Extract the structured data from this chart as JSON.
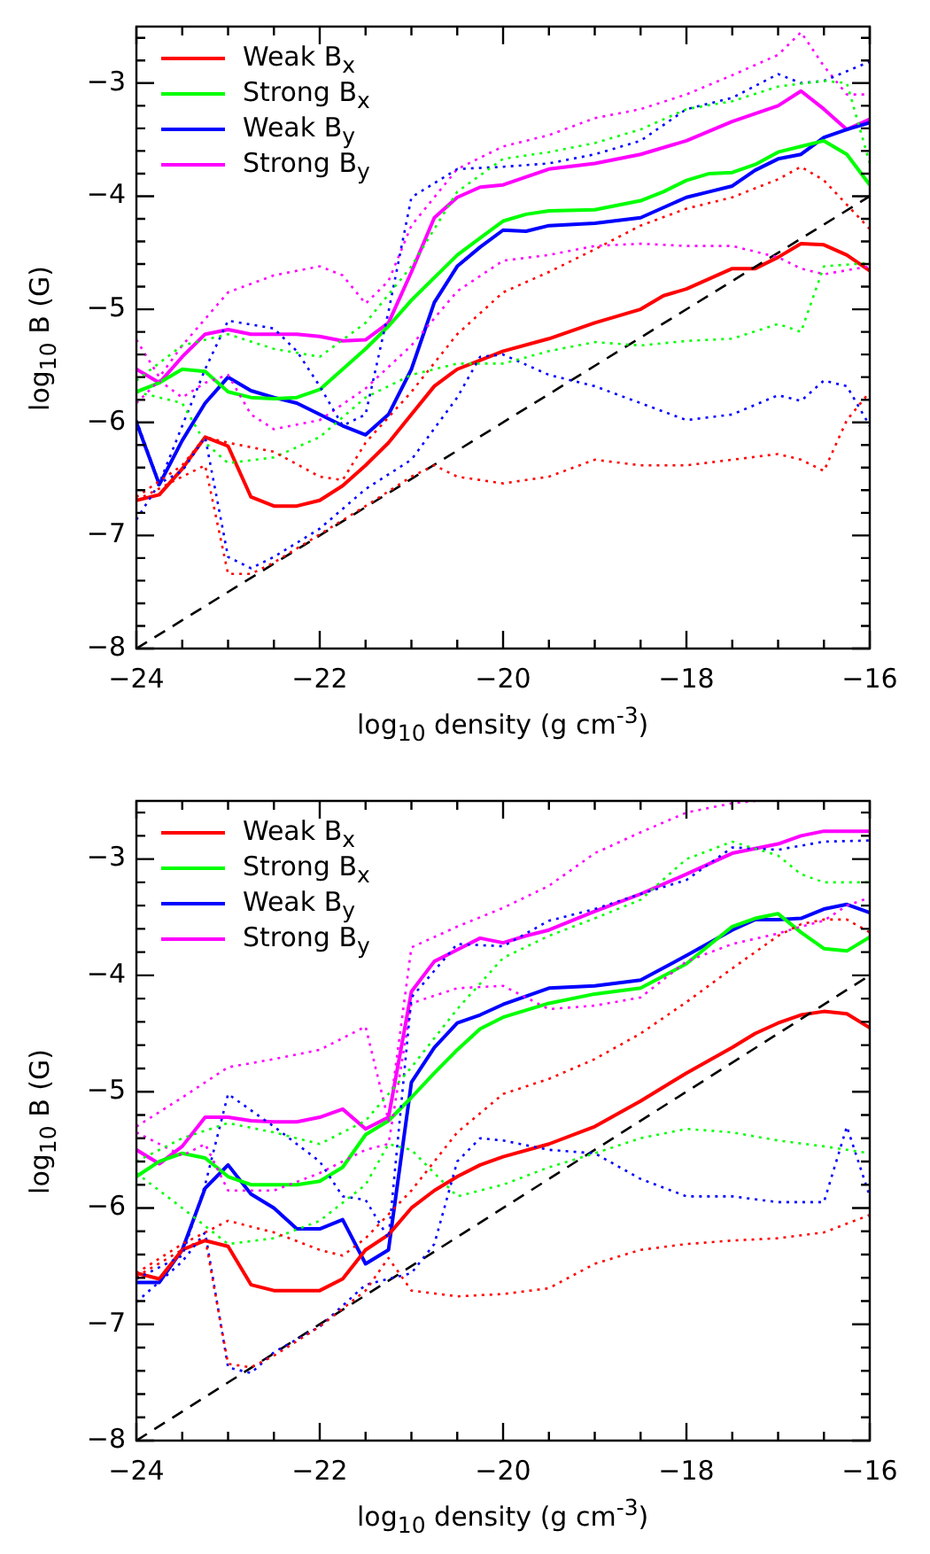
{
  "chart_data": [
    {
      "type": "line",
      "xlabel": "log$_{10}$ density (g cm$^{-3}$)",
      "ylabel": "log$_{10}$ B (G)",
      "xlim": [
        -24,
        -16
      ],
      "ylim": [
        -8,
        -2.5
      ],
      "xticks": [
        -24,
        {
          "value": -23.5,
          "label": null
        },
        {
          "value": -23,
          "label": null
        },
        {
          "value": -22.5,
          "label": null
        },
        -22,
        {
          "value": -21.5,
          "label": null
        },
        {
          "value": -21,
          "label": null
        },
        {
          "value": -20.5,
          "label": null
        },
        -20,
        {
          "value": -19.5,
          "label": null
        },
        {
          "value": -19,
          "label": null
        },
        {
          "value": -18.5,
          "label": null
        },
        -18,
        {
          "value": -17.5,
          "label": null
        },
        {
          "value": -17,
          "label": null
        },
        {
          "value": -16.5,
          "label": null
        },
        -16
      ],
      "yticks": [
        -8,
        {
          "value": -7.8,
          "label": null
        },
        {
          "value": -7.6,
          "label": null
        },
        {
          "value": -7.4,
          "label": null
        },
        {
          "value": -7.2,
          "label": null
        },
        -7,
        {
          "value": -6.8,
          "label": null
        },
        {
          "value": -6.6,
          "label": null
        },
        {
          "value": -6.4,
          "label": null
        },
        {
          "value": -6.2,
          "label": null
        },
        -6,
        {
          "value": -5.8,
          "label": null
        },
        {
          "value": -5.6,
          "label": null
        },
        {
          "value": -5.4,
          "label": null
        },
        {
          "value": -5.2,
          "label": null
        },
        -5,
        {
          "value": -4.8,
          "label": null
        },
        {
          "value": -4.6,
          "label": null
        },
        {
          "value": -4.4,
          "label": null
        },
        {
          "value": -4.2,
          "label": null
        },
        -4,
        {
          "value": -3.8,
          "label": null
        },
        {
          "value": -3.6,
          "label": null
        },
        {
          "value": -3.4,
          "label": null
        },
        {
          "value": -3.2,
          "label": null
        },
        -3,
        {
          "value": -2.8,
          "label": null
        },
        {
          "value": -2.6,
          "label": null
        }
      ],
      "legend": "top left",
      "marker": "none",
      "series": [
        {
          "color": "#ff0000",
          "line_style": "dotted",
          "x": [
            -24,
            -23.5,
            -23.25,
            -23,
            -22.5,
            -22,
            -21.75,
            -21.5,
            -21,
            -20.5,
            -20,
            -19.5,
            -19,
            -18.5,
            -18,
            -17.5,
            -17,
            -16.75,
            -16.5,
            -16
          ],
          "values": [
            -6.66,
            -6.38,
            -6.13,
            -6.18,
            -6.26,
            -6.48,
            -6.51,
            -6.18,
            -5.73,
            -5.22,
            -4.85,
            -4.67,
            -4.47,
            -4.26,
            -4.11,
            -4.01,
            -3.85,
            -3.74,
            -3.86,
            -4.29
          ]
        },
        {
          "color": "#ff0000",
          "line_style": "dotted",
          "x": [
            -24,
            -23.5,
            -23.25,
            -23,
            -22.75,
            -22.5,
            -22,
            -21.5,
            -21,
            -20.75,
            -20.5,
            -20,
            -19.5,
            -19,
            -18.5,
            -18,
            -17.5,
            -17,
            -16.75,
            -16.5,
            -16.25,
            -16
          ],
          "values": [
            -6.69,
            -6.48,
            -6.38,
            -7.34,
            -7.34,
            -7.24,
            -6.99,
            -6.74,
            -6.48,
            -6.38,
            -6.48,
            -6.54,
            -6.48,
            -6.33,
            -6.38,
            -6.38,
            -6.33,
            -6.28,
            -6.33,
            -6.43,
            -5.98,
            -5.73
          ]
        },
        {
          "color": "#00ff00",
          "line_style": "dotted",
          "x": [
            -24,
            -23.5,
            -23,
            -22.5,
            -22,
            -21.5,
            -21,
            -20.5,
            -20,
            -19.5,
            -19,
            -18.5,
            -18,
            -17.5,
            -17,
            -16.5,
            -16.25,
            -16
          ],
          "values": [
            -5.63,
            -5.32,
            -5.22,
            -5.35,
            -5.42,
            -5.12,
            -4.62,
            -3.96,
            -3.67,
            -3.61,
            -3.53,
            -3.41,
            -3.23,
            -3.16,
            -3.03,
            -2.98,
            -3.0,
            -3.71
          ]
        },
        {
          "color": "#00ff00",
          "line_style": "dotted",
          "x": [
            -24,
            -23.5,
            -23.25,
            -23,
            -22.5,
            -22,
            -21.5,
            -21,
            -20.5,
            -20,
            -19.5,
            -19,
            -18.5,
            -18,
            -17.5,
            -17,
            -16.75,
            -16.5,
            -16
          ],
          "values": [
            -5.73,
            -5.83,
            -6.18,
            -6.36,
            -6.31,
            -6.13,
            -5.78,
            -5.58,
            -5.48,
            -5.48,
            -5.37,
            -5.29,
            -5.32,
            -5.28,
            -5.26,
            -5.13,
            -5.2,
            -4.62,
            -4.59
          ]
        },
        {
          "color": "#0000ff",
          "line_style": "dotted",
          "x": [
            -24,
            -23.75,
            -23.5,
            -23.25,
            -23,
            -22.5,
            -22.25,
            -22,
            -21.75,
            -21.5,
            -21.25,
            -21,
            -20.5,
            -20,
            -19.5,
            -19,
            -18.5,
            -18,
            -17.5,
            -17,
            -16.75,
            -16.5,
            -16
          ],
          "values": [
            -5.98,
            -6.54,
            -6.03,
            -5.53,
            -5.1,
            -5.17,
            -5.37,
            -5.68,
            -6.03,
            -5.93,
            -5.02,
            -4.01,
            -3.76,
            -3.74,
            -3.71,
            -3.63,
            -3.51,
            -3.23,
            -3.13,
            -2.92,
            -3.0,
            -2.98,
            -2.81
          ]
        },
        {
          "color": "#0000ff",
          "line_style": "dotted",
          "x": [
            -24,
            -23.75,
            -23.5,
            -23.25,
            -23,
            -22.75,
            -22.5,
            -22,
            -21.5,
            -21,
            -20.5,
            -20.25,
            -20,
            -19.5,
            -19,
            -18.5,
            -18,
            -17.5,
            -17,
            -16.75,
            -16.5,
            -16.25,
            -16
          ],
          "values": [
            -6.86,
            -6.54,
            -6.43,
            -6.13,
            -7.19,
            -7.29,
            -7.19,
            -6.94,
            -6.59,
            -6.33,
            -5.78,
            -5.42,
            -5.4,
            -5.58,
            -5.68,
            -5.83,
            -5.98,
            -5.93,
            -5.76,
            -5.81,
            -5.63,
            -5.68,
            -6.03
          ]
        },
        {
          "color": "#ff00ff",
          "line_style": "dotted",
          "x": [
            -24,
            -23.75,
            -23.5,
            -23,
            -22.5,
            -22,
            -21.75,
            -21.5,
            -21.25,
            -21,
            -20.5,
            -20,
            -19.5,
            -19,
            -18.5,
            -18,
            -17.5,
            -17,
            -16.75,
            -16.5,
            -16.25,
            -16
          ],
          "values": [
            -5.27,
            -5.6,
            -5.32,
            -4.85,
            -4.7,
            -4.62,
            -4.7,
            -4.95,
            -4.75,
            -4.26,
            -3.76,
            -3.56,
            -3.46,
            -3.31,
            -3.23,
            -3.1,
            -2.93,
            -2.75,
            -2.55,
            -2.85,
            -3.1,
            -3.1
          ]
        },
        {
          "color": "#ff00ff",
          "line_style": "dotted",
          "x": [
            -24,
            -23.75,
            -23.5,
            -23.25,
            -23,
            -22.75,
            -22.5,
            -22,
            -21.5,
            -21,
            -20.5,
            -20,
            -19.5,
            -19,
            -18.5,
            -18,
            -17.5,
            -17,
            -16.75,
            -16.5,
            -16
          ],
          "values": [
            -5.83,
            -5.63,
            -5.78,
            -5.65,
            -5.58,
            -5.93,
            -6.06,
            -5.98,
            -5.7,
            -5.32,
            -4.84,
            -4.57,
            -4.52,
            -4.44,
            -4.42,
            -4.44,
            -4.44,
            -4.54,
            -4.64,
            -4.69,
            -4.62
          ]
        },
        {
          "color": "#000000",
          "line_style": "dashed",
          "x": [
            -24,
            -16
          ],
          "values": [
            -8,
            -4
          ]
        },
        {
          "name": "Weak B$_{x}$",
          "color": "#ff0000",
          "line_style": "solid",
          "x": [
            -24,
            -23.75,
            -23.5,
            -23.25,
            -23,
            -22.75,
            -22.5,
            -22.25,
            -22,
            -21.75,
            -21.5,
            -21.25,
            -21,
            -20.75,
            -20.5,
            -20.25,
            -20,
            -19.5,
            -19,
            -18.5,
            -18.25,
            -18,
            -17.5,
            -17.25,
            -17,
            -16.75,
            -16.5,
            -16.25,
            -16
          ],
          "values": [
            -6.69,
            -6.64,
            -6.41,
            -6.13,
            -6.21,
            -6.66,
            -6.74,
            -6.74,
            -6.69,
            -6.56,
            -6.38,
            -6.18,
            -5.93,
            -5.68,
            -5.53,
            -5.45,
            -5.37,
            -5.26,
            -5.12,
            -5.0,
            -4.88,
            -4.82,
            -4.64,
            -4.64,
            -4.54,
            -4.42,
            -4.43,
            -4.52,
            -4.66
          ]
        },
        {
          "name": "Strong B$_{x}$",
          "color": "#00ff00",
          "line_style": "solid",
          "x": [
            -24,
            -23.75,
            -23.5,
            -23.25,
            -23,
            -22.75,
            -22.5,
            -22.25,
            -22,
            -21.75,
            -21.5,
            -21.25,
            -21,
            -20.75,
            -20.5,
            -20.25,
            -20,
            -19.75,
            -19.5,
            -19,
            -18.5,
            -18.25,
            -18,
            -17.75,
            -17.5,
            -17.25,
            -17,
            -16.75,
            -16.5,
            -16.25,
            -16
          ],
          "values": [
            -5.73,
            -5.65,
            -5.53,
            -5.55,
            -5.73,
            -5.78,
            -5.79,
            -5.78,
            -5.71,
            -5.53,
            -5.35,
            -5.15,
            -4.92,
            -4.72,
            -4.52,
            -4.37,
            -4.22,
            -4.16,
            -4.13,
            -4.12,
            -4.04,
            -3.96,
            -3.86,
            -3.8,
            -3.79,
            -3.72,
            -3.61,
            -3.56,
            -3.51,
            -3.63,
            -3.9
          ]
        },
        {
          "name": "Weak B$_{y}$",
          "color": "#0000ff",
          "line_style": "solid",
          "x": [
            -24,
            -23.75,
            -23.5,
            -23.25,
            -23,
            -22.75,
            -22.5,
            -22.25,
            -22,
            -21.75,
            -21.5,
            -21.25,
            -21,
            -20.75,
            -20.5,
            -20.25,
            -20,
            -19.75,
            -19.5,
            -19,
            -18.5,
            -18.25,
            -18,
            -17.75,
            -17.5,
            -17.25,
            -17,
            -16.75,
            -16.5,
            -16.25,
            -16
          ],
          "values": [
            -6.0,
            -6.55,
            -6.16,
            -5.83,
            -5.6,
            -5.72,
            -5.78,
            -5.83,
            -5.93,
            -6.03,
            -6.11,
            -5.93,
            -5.53,
            -4.94,
            -4.62,
            -4.45,
            -4.3,
            -4.31,
            -4.26,
            -4.24,
            -4.19,
            -4.1,
            -4.01,
            -3.96,
            -3.91,
            -3.77,
            -3.67,
            -3.63,
            -3.48,
            -3.41,
            -3.35
          ]
        },
        {
          "name": "Strong B$_{y}$",
          "color": "#ff00ff",
          "line_style": "solid",
          "x": [
            -24,
            -23.75,
            -23.5,
            -23.25,
            -23,
            -22.75,
            -22.5,
            -22.25,
            -22,
            -21.75,
            -21.5,
            -21.25,
            -21,
            -20.75,
            -20.5,
            -20.25,
            -20,
            -19.5,
            -19,
            -18.5,
            -18,
            -17.5,
            -17,
            -16.75,
            -16.5,
            -16.25,
            -16
          ],
          "values": [
            -5.53,
            -5.65,
            -5.42,
            -5.22,
            -5.18,
            -5.22,
            -5.22,
            -5.22,
            -5.24,
            -5.28,
            -5.27,
            -5.12,
            -4.67,
            -4.19,
            -4.01,
            -3.92,
            -3.9,
            -3.76,
            -3.71,
            -3.63,
            -3.51,
            -3.34,
            -3.2,
            -3.07,
            -3.23,
            -3.41,
            -3.32
          ]
        }
      ]
    },
    {
      "type": "line",
      "xlabel": "log$_{10}$ density (g cm$^{-3}$)",
      "ylabel": "log$_{10}$ B (G)",
      "xlim": [
        -24,
        -16
      ],
      "ylim": [
        -8,
        -2.5
      ],
      "xticks": [
        -24,
        {
          "value": -23.5,
          "label": null
        },
        {
          "value": -23,
          "label": null
        },
        {
          "value": -22.5,
          "label": null
        },
        -22,
        {
          "value": -21.5,
          "label": null
        },
        {
          "value": -21,
          "label": null
        },
        {
          "value": -20.5,
          "label": null
        },
        -20,
        {
          "value": -19.5,
          "label": null
        },
        {
          "value": -19,
          "label": null
        },
        {
          "value": -18.5,
          "label": null
        },
        -18,
        {
          "value": -17.5,
          "label": null
        },
        {
          "value": -17,
          "label": null
        },
        {
          "value": -16.5,
          "label": null
        },
        -16
      ],
      "yticks": [
        -8,
        {
          "value": -7.8,
          "label": null
        },
        {
          "value": -7.6,
          "label": null
        },
        {
          "value": -7.4,
          "label": null
        },
        {
          "value": -7.2,
          "label": null
        },
        -7,
        {
          "value": -6.8,
          "label": null
        },
        {
          "value": -6.6,
          "label": null
        },
        {
          "value": -6.4,
          "label": null
        },
        {
          "value": -6.2,
          "label": null
        },
        -6,
        {
          "value": -5.8,
          "label": null
        },
        {
          "value": -5.6,
          "label": null
        },
        {
          "value": -5.4,
          "label": null
        },
        {
          "value": -5.2,
          "label": null
        },
        -5,
        {
          "value": -4.8,
          "label": null
        },
        {
          "value": -4.6,
          "label": null
        },
        {
          "value": -4.4,
          "label": null
        },
        {
          "value": -4.2,
          "label": null
        },
        -4,
        {
          "value": -3.8,
          "label": null
        },
        {
          "value": -3.6,
          "label": null
        },
        {
          "value": -3.4,
          "label": null
        },
        {
          "value": -3.2,
          "label": null
        },
        -3,
        {
          "value": -2.8,
          "label": null
        },
        {
          "value": -2.6,
          "label": null
        }
      ],
      "legend": "top left",
      "marker": "none",
      "series": [
        {
          "color": "#ff0000",
          "line_style": "dotted",
          "x": [
            -24,
            -23.5,
            -23,
            -22.5,
            -22,
            -21.75,
            -21.5,
            -21,
            -20.5,
            -20,
            -19.5,
            -19,
            -18.5,
            -18,
            -17.5,
            -17,
            -16.75,
            -16.5,
            -16.25,
            -16
          ],
          "values": [
            -6.56,
            -6.31,
            -6.11,
            -6.21,
            -6.36,
            -6.41,
            -6.26,
            -5.85,
            -5.35,
            -5.02,
            -4.89,
            -4.72,
            -4.5,
            -4.23,
            -3.94,
            -3.66,
            -3.56,
            -3.52,
            -3.52,
            -3.63
          ]
        },
        {
          "color": "#ff0000",
          "line_style": "dotted",
          "x": [
            -24,
            -23.5,
            -23.25,
            -23,
            -22.75,
            -22.5,
            -22,
            -21.5,
            -21.25,
            -21,
            -20.5,
            -20,
            -19.5,
            -19,
            -18.5,
            -18,
            -17.5,
            -17,
            -16.5,
            -16
          ],
          "values": [
            -6.59,
            -6.36,
            -6.26,
            -7.34,
            -7.37,
            -7.27,
            -7.02,
            -6.71,
            -6.43,
            -6.71,
            -6.76,
            -6.74,
            -6.69,
            -6.48,
            -6.36,
            -6.31,
            -6.28,
            -6.26,
            -6.21,
            -6.06
          ]
        },
        {
          "color": "#00ff00",
          "line_style": "dotted",
          "x": [
            -24,
            -23.5,
            -23,
            -22.5,
            -22,
            -21.5,
            -21,
            -20.5,
            -20,
            -19.5,
            -19,
            -18.5,
            -18,
            -17.5,
            -17,
            -16.75,
            -16.5,
            -16
          ],
          "values": [
            -5.6,
            -5.4,
            -5.27,
            -5.35,
            -5.45,
            -5.25,
            -4.79,
            -4.29,
            -3.85,
            -3.66,
            -3.51,
            -3.35,
            -3.0,
            -2.85,
            -2.97,
            -3.13,
            -3.2,
            -3.2
          ]
        },
        {
          "color": "#00ff00",
          "line_style": "dotted",
          "x": [
            -24,
            -23.5,
            -23,
            -22.5,
            -22,
            -21.5,
            -21.25,
            -21,
            -20.5,
            -20,
            -19.5,
            -19,
            -18.5,
            -18,
            -17.5,
            -17,
            -16.5,
            -16
          ],
          "values": [
            -5.7,
            -6.0,
            -6.31,
            -6.26,
            -6.11,
            -5.8,
            -5.45,
            -5.5,
            -5.9,
            -5.8,
            -5.65,
            -5.53,
            -5.4,
            -5.32,
            -5.35,
            -5.42,
            -5.47,
            -5.53
          ]
        },
        {
          "color": "#0000ff",
          "line_style": "dotted",
          "x": [
            -24,
            -23.5,
            -23.25,
            -23,
            -22.5,
            -22,
            -21.75,
            -21.5,
            -21.25,
            -21,
            -20.5,
            -20,
            -19.5,
            -19,
            -18.5,
            -18,
            -17.5,
            -17,
            -16.5,
            -16
          ],
          "values": [
            -6.61,
            -6.41,
            -5.8,
            -5.02,
            -5.3,
            -5.6,
            -5.9,
            -5.93,
            -6.26,
            -4.19,
            -3.73,
            -3.75,
            -3.53,
            -3.43,
            -3.3,
            -3.18,
            -2.9,
            -2.92,
            -2.85,
            -2.84
          ]
        },
        {
          "color": "#0000ff",
          "line_style": "dotted",
          "x": [
            -24,
            -23.5,
            -23.25,
            -23,
            -22.75,
            -22.5,
            -22,
            -21.5,
            -21,
            -20.75,
            -20.5,
            -20.25,
            -20,
            -19.5,
            -19,
            -18.5,
            -18,
            -17.5,
            -17,
            -16.5,
            -16.25,
            -16
          ],
          "values": [
            -6.81,
            -6.46,
            -6.21,
            -7.37,
            -7.42,
            -7.24,
            -7.02,
            -6.66,
            -6.56,
            -6.31,
            -5.6,
            -5.4,
            -5.42,
            -5.5,
            -5.53,
            -5.75,
            -5.9,
            -5.9,
            -5.95,
            -5.95,
            -5.3,
            -5.9
          ]
        },
        {
          "color": "#ff00ff",
          "line_style": "dotted",
          "x": [
            -24,
            -23.5,
            -23,
            -22.5,
            -22,
            -21.5,
            -21.25,
            -21,
            -20.5,
            -20,
            -19.5,
            -19,
            -18.5,
            -18,
            -17.5,
            -17.25
          ],
          "values": [
            -5.3,
            -5.05,
            -4.79,
            -4.72,
            -4.64,
            -4.44,
            -5.25,
            -3.76,
            -3.58,
            -3.42,
            -3.23,
            -2.95,
            -2.77,
            -2.6,
            -2.52,
            -2.5
          ]
        },
        {
          "color": "#ff00ff",
          "line_style": "dotted",
          "x": [
            -24,
            -23.5,
            -23.25,
            -23,
            -22.5,
            -22,
            -21.5,
            -21.25,
            -21,
            -20.5,
            -20,
            -19.5,
            -19,
            -18.5,
            -18,
            -17.5,
            -17,
            -16.75,
            -16.5,
            -16.25,
            -16
          ],
          "values": [
            -5.35,
            -5.55,
            -5.45,
            -5.85,
            -5.85,
            -5.7,
            -5.5,
            -5.45,
            -4.24,
            -4.11,
            -4.09,
            -4.29,
            -4.26,
            -4.19,
            -3.88,
            -3.73,
            -3.64,
            -3.58,
            -3.53,
            -3.4,
            -3.33
          ]
        },
        {
          "color": "#000000",
          "line_style": "dashed",
          "x": [
            -24,
            -16
          ],
          "values": [
            -8,
            -4
          ]
        },
        {
          "name": "Weak B$_{x}$",
          "color": "#ff0000",
          "line_style": "solid",
          "x": [
            -24,
            -23.75,
            -23.5,
            -23.25,
            -23,
            -22.75,
            -22.5,
            -22.25,
            -22,
            -21.75,
            -21.5,
            -21.25,
            -21,
            -20.75,
            -20.5,
            -20.25,
            -20,
            -19.5,
            -19,
            -18.5,
            -18,
            -17.5,
            -17.25,
            -17,
            -16.75,
            -16.5,
            -16.25,
            -16
          ],
          "values": [
            -6.56,
            -6.61,
            -6.36,
            -6.28,
            -6.33,
            -6.66,
            -6.71,
            -6.71,
            -6.71,
            -6.61,
            -6.36,
            -6.23,
            -6.0,
            -5.85,
            -5.73,
            -5.63,
            -5.56,
            -5.45,
            -5.3,
            -5.08,
            -4.84,
            -4.62,
            -4.5,
            -4.41,
            -4.34,
            -4.31,
            -4.33,
            -4.45
          ]
        },
        {
          "name": "Strong B$_{x}$",
          "color": "#00ff00",
          "line_style": "solid",
          "x": [
            -24,
            -23.75,
            -23.5,
            -23.25,
            -23,
            -22.75,
            -22.5,
            -22.25,
            -22,
            -21.75,
            -21.5,
            -21.25,
            -21,
            -20.75,
            -20.5,
            -20.25,
            -20,
            -19.5,
            -19,
            -18.5,
            -18,
            -17.5,
            -17.25,
            -17,
            -16.75,
            -16.5,
            -16.25,
            -16
          ],
          "values": [
            -5.73,
            -5.6,
            -5.53,
            -5.57,
            -5.73,
            -5.8,
            -5.8,
            -5.8,
            -5.77,
            -5.65,
            -5.37,
            -5.25,
            -5.05,
            -4.84,
            -4.64,
            -4.46,
            -4.36,
            -4.24,
            -4.16,
            -4.11,
            -3.9,
            -3.58,
            -3.51,
            -3.47,
            -3.63,
            -3.77,
            -3.79,
            -3.67
          ]
        },
        {
          "name": "Weak B$_{y}$",
          "color": "#0000ff",
          "line_style": "solid",
          "x": [
            -24,
            -23.75,
            -23.5,
            -23.25,
            -23,
            -22.75,
            -22.5,
            -22.25,
            -22,
            -21.75,
            -21.5,
            -21.25,
            -21,
            -20.75,
            -20.5,
            -20.25,
            -20,
            -19.5,
            -19,
            -18.5,
            -18,
            -17.5,
            -17.25,
            -17,
            -16.75,
            -16.5,
            -16.25,
            -16
          ],
          "values": [
            -6.64,
            -6.64,
            -6.36,
            -5.83,
            -5.63,
            -5.88,
            -6.0,
            -6.18,
            -6.18,
            -6.1,
            -6.48,
            -6.36,
            -4.92,
            -4.62,
            -4.41,
            -4.34,
            -4.25,
            -4.11,
            -4.09,
            -4.04,
            -3.83,
            -3.61,
            -3.52,
            -3.52,
            -3.51,
            -3.43,
            -3.39,
            -3.46
          ]
        },
        {
          "name": "Strong B$_{y}$",
          "color": "#ff00ff",
          "line_style": "solid",
          "x": [
            -24,
            -23.75,
            -23.5,
            -23.25,
            -23,
            -22.75,
            -22.5,
            -22.25,
            -22,
            -21.75,
            -21.5,
            -21.25,
            -21,
            -20.75,
            -20.5,
            -20.25,
            -20,
            -19.75,
            -19.5,
            -19,
            -18.5,
            -18,
            -17.5,
            -17,
            -16.75,
            -16.5,
            -16
          ],
          "values": [
            -5.5,
            -5.62,
            -5.47,
            -5.22,
            -5.22,
            -5.25,
            -5.26,
            -5.26,
            -5.22,
            -5.15,
            -5.32,
            -5.22,
            -4.14,
            -3.88,
            -3.78,
            -3.68,
            -3.72,
            -3.66,
            -3.61,
            -3.45,
            -3.3,
            -3.13,
            -2.95,
            -2.87,
            -2.8,
            -2.76,
            -2.76
          ]
        }
      ]
    }
  ]
}
